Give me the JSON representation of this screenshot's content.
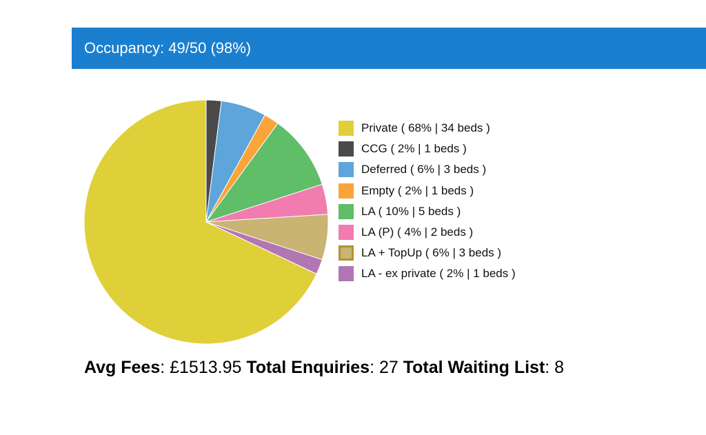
{
  "header": {
    "title": "Occupancy: 49/50 (98%)"
  },
  "chart_data": {
    "type": "pie",
    "categories": [
      "Private",
      "CCG",
      "Deferred",
      "Empty",
      "LA",
      "LA (P)",
      "LA + TopUp",
      "LA - ex private"
    ],
    "values": [
      34,
      1,
      3,
      1,
      5,
      2,
      3,
      1
    ],
    "legend_labels": [
      "Private ( 68% | 34 beds )",
      "CCG ( 2% | 1 beds )",
      "Deferred ( 6% | 3 beds )",
      "Empty ( 2% | 1 beds )",
      "LA ( 10% | 5 beds )",
      "LA (P) ( 4% | 2 beds )",
      "LA + TopUp ( 6% | 3 beds )",
      "LA - ex private ( 2% | 1 beds )"
    ],
    "colors": [
      "#dfd03a",
      "#4a4a4a",
      "#5da5da",
      "#faa43a",
      "#60bd68",
      "#f17cb0",
      "#c9b474",
      "#b276b2"
    ],
    "legend_placement": "right"
  },
  "stats": {
    "avg_fees_label": "Avg Fees",
    "avg_fees_value": ": £1513.95 ",
    "enquiries_label": "Total Enquiries",
    "enquiries_value": ": 27 ",
    "waiting_label": "Total Waiting List",
    "waiting_value": ": 8"
  }
}
